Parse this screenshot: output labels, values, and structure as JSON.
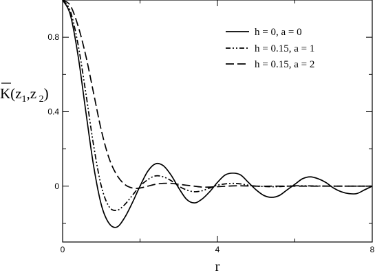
{
  "chart_data": {
    "type": "line",
    "xlabel": "r",
    "ylabel": "K(z1,z2)",
    "xlim": [
      0,
      8
    ],
    "ylim": [
      -0.3,
      1.0
    ],
    "x_ticks": [
      "0",
      "4",
      "8"
    ],
    "y_ticks": [
      "0",
      "0.4",
      "0.8"
    ],
    "legend_position": "top-right",
    "series": [
      {
        "name": "h = 0, a = 0",
        "style": "solid",
        "x": [
          0,
          0.2,
          0.4,
          0.6,
          0.8,
          1.0,
          1.2,
          1.4,
          1.6,
          1.8,
          2.0,
          2.2,
          2.4,
          2.6,
          2.8,
          3.0,
          3.2,
          3.4,
          3.6,
          3.8,
          4.0,
          4.2,
          4.4,
          4.6,
          4.8,
          5.0,
          5.2,
          5.4,
          5.6,
          5.8,
          6.0,
          6.2,
          6.4,
          6.6,
          6.8,
          7.0,
          7.2,
          7.4,
          7.6,
          7.8,
          8.0
        ],
        "y": [
          1.0,
          0.92,
          0.7,
          0.4,
          0.11,
          -0.1,
          -0.2,
          -0.22,
          -0.17,
          -0.09,
          0.0,
          0.08,
          0.12,
          0.11,
          0.06,
          -0.01,
          -0.07,
          -0.09,
          -0.07,
          -0.03,
          0.02,
          0.06,
          0.07,
          0.06,
          0.02,
          -0.02,
          -0.05,
          -0.06,
          -0.05,
          -0.02,
          0.01,
          0.04,
          0.05,
          0.04,
          0.02,
          -0.01,
          -0.03,
          -0.04,
          -0.04,
          -0.02,
          0.0
        ]
      },
      {
        "name": "h = 0.15, a = 1",
        "style": "dash-dot-dot",
        "x": [
          0,
          0.2,
          0.4,
          0.6,
          0.8,
          1.0,
          1.2,
          1.4,
          1.6,
          1.8,
          2.0,
          2.2,
          2.4,
          2.6,
          2.8,
          3.0,
          3.2,
          3.4,
          3.6,
          3.8,
          4.0,
          4.2,
          4.4,
          4.6,
          4.8,
          5.0,
          5.5,
          6.0,
          6.5,
          7.0,
          7.5,
          8.0
        ],
        "y": [
          1.0,
          0.94,
          0.76,
          0.5,
          0.22,
          0.0,
          -0.11,
          -0.13,
          -0.1,
          -0.05,
          0.0,
          0.035,
          0.055,
          0.05,
          0.03,
          0.0,
          -0.02,
          -0.03,
          -0.025,
          -0.01,
          0.005,
          0.012,
          0.015,
          0.012,
          0.005,
          0.0,
          -0.003,
          0.002,
          0.001,
          0.0,
          0.0,
          0.0
        ]
      },
      {
        "name": "h = 0.15, a = 2",
        "style": "dashed",
        "x": [
          0,
          0.2,
          0.4,
          0.6,
          0.8,
          1.0,
          1.2,
          1.4,
          1.6,
          1.8,
          2.0,
          2.2,
          2.4,
          2.6,
          2.8,
          3.0,
          3.2,
          3.4,
          3.6,
          3.8,
          4.0,
          4.5,
          5.0,
          5.5,
          6.0,
          6.5,
          7.0,
          7.5,
          8.0
        ],
        "y": [
          1.0,
          0.97,
          0.86,
          0.7,
          0.5,
          0.3,
          0.15,
          0.06,
          0.01,
          -0.01,
          -0.01,
          0.0,
          0.01,
          0.015,
          0.015,
          0.01,
          0.005,
          0.0,
          -0.005,
          -0.005,
          -0.003,
          0.002,
          0.0,
          0.0,
          0.0,
          0.0,
          0.0,
          0.0,
          0.0
        ]
      }
    ]
  }
}
